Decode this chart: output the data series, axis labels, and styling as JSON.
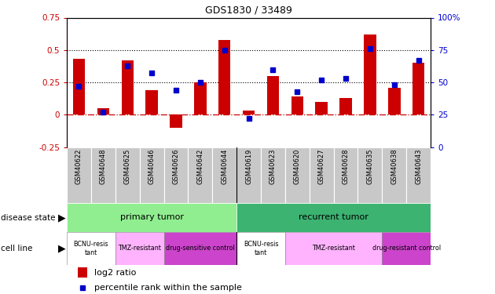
{
  "title": "GDS1830 / 33489",
  "samples": [
    "GSM40622",
    "GSM40648",
    "GSM40625",
    "GSM40646",
    "GSM40626",
    "GSM40642",
    "GSM40644",
    "GSM40619",
    "GSM40623",
    "GSM40620",
    "GSM40627",
    "GSM40628",
    "GSM40635",
    "GSM40638",
    "GSM40643"
  ],
  "log2_ratio": [
    0.43,
    0.05,
    0.42,
    0.19,
    -0.1,
    0.25,
    0.58,
    0.03,
    0.3,
    0.14,
    0.1,
    0.13,
    0.62,
    0.21,
    0.4
  ],
  "percentile_rank": [
    47,
    27,
    63,
    57,
    44,
    50,
    75,
    22,
    60,
    43,
    52,
    53,
    76,
    48,
    67
  ],
  "left_axis_ticks": [
    -0.25,
    0,
    0.25,
    0.5,
    0.75
  ],
  "right_axis_ticks": [
    0,
    25,
    50,
    75,
    100
  ],
  "hline_dashed_red": 0.0,
  "hline_dotted_black_1": 0.25,
  "hline_dotted_black_2": 0.5,
  "bar_color": "#CC0000",
  "dot_color": "#0000CC",
  "sample_box_color": "#c8c8c8",
  "disease_primary_color": "#90EE90",
  "disease_recurrent_color": "#3CB371",
  "cell_white": "#ffffff",
  "cell_pink_light": "#FFB3FF",
  "cell_pink_dark": "#CC44CC",
  "legend_bar": "log2 ratio",
  "legend_dot": "percentile rank within the sample",
  "primary_span": [
    0,
    6
  ],
  "recurrent_span": [
    7,
    14
  ],
  "cell_line_groups": [
    {
      "label": "BCNU-resis\ntant",
      "span": [
        0,
        1
      ],
      "color": "#ffffff"
    },
    {
      "label": "TMZ-resistant",
      "span": [
        2,
        3
      ],
      "color": "#FFB3FF"
    },
    {
      "label": "drug-sensitive control",
      "span": [
        4,
        6
      ],
      "color": "#CC44CC"
    },
    {
      "label": "BCNU-resis\ntant",
      "span": [
        7,
        8
      ],
      "color": "#ffffff"
    },
    {
      "label": "TMZ-resistant",
      "span": [
        9,
        12
      ],
      "color": "#FFB3FF"
    },
    {
      "label": "drug-resistant control",
      "span": [
        13,
        14
      ],
      "color": "#CC44CC"
    }
  ]
}
